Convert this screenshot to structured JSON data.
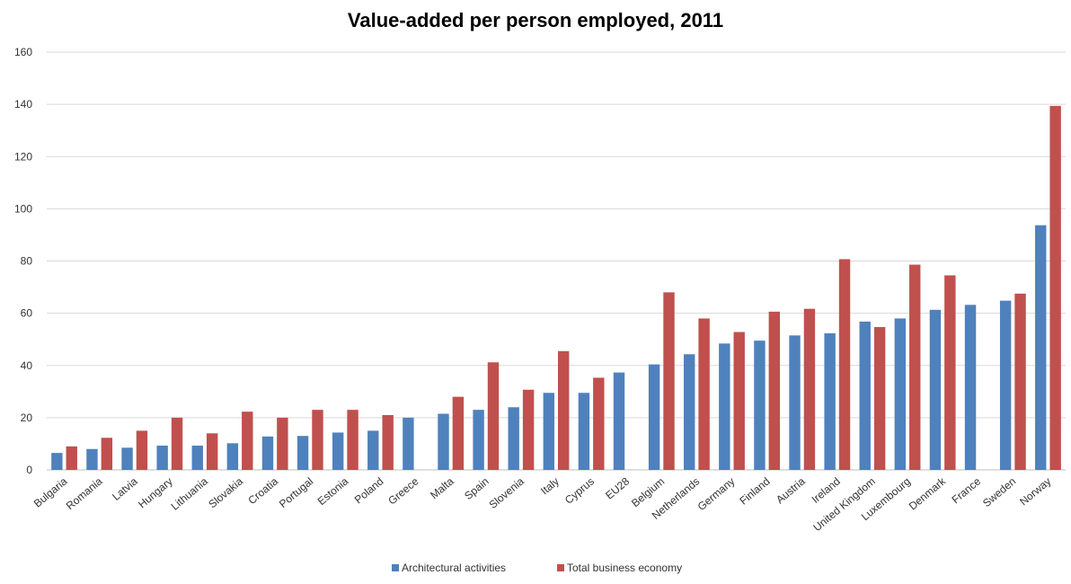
{
  "chart_data": {
    "type": "bar",
    "title": "Value-added per person employed, 2011",
    "xlabel": "",
    "ylabel": "",
    "ylim": [
      0,
      160
    ],
    "yticks": [
      0,
      20,
      40,
      60,
      80,
      100,
      120,
      140,
      160
    ],
    "grid": true,
    "legend_position": "bottom",
    "categories": [
      "Bulgaria",
      "Romania",
      "Latvia",
      "Hungary",
      "Lithuania",
      "Slovakia",
      "Croatia",
      "Portugal",
      "Estonia",
      "Poland",
      "Greece",
      "Malta",
      "Spain",
      "Slovenia",
      "Italy",
      "Cyprus",
      "EU28",
      "Belgium",
      "Netherlands",
      "Germany",
      "Finland",
      "Austria",
      "Ireland",
      "United Kingdom",
      "Luxembourg",
      "Denmark",
      "France",
      "Sweden",
      "Norway"
    ],
    "series": [
      {
        "name": "Architectural activities",
        "color": "#4F81BD",
        "values": [
          6.5,
          8,
          8.5,
          9.3,
          9.3,
          10.2,
          12.8,
          13,
          14.3,
          15,
          20,
          21.5,
          23,
          24,
          29.5,
          29.5,
          37.3,
          40.4,
          44.3,
          48.4,
          49.5,
          51.5,
          52.3,
          56.8,
          58,
          61.3,
          63.2,
          64.8,
          93.7
        ]
      },
      {
        "name": "Total business economy",
        "color": "#C0504D",
        "values": [
          9,
          12.3,
          15,
          20,
          14,
          22.3,
          20,
          23,
          23,
          21,
          null,
          28,
          41.2,
          30.7,
          45.5,
          35.3,
          null,
          68,
          58,
          52.8,
          60.6,
          61.7,
          80.7,
          54.7,
          78.6,
          74.5,
          null,
          67.5,
          139.4
        ]
      }
    ]
  }
}
